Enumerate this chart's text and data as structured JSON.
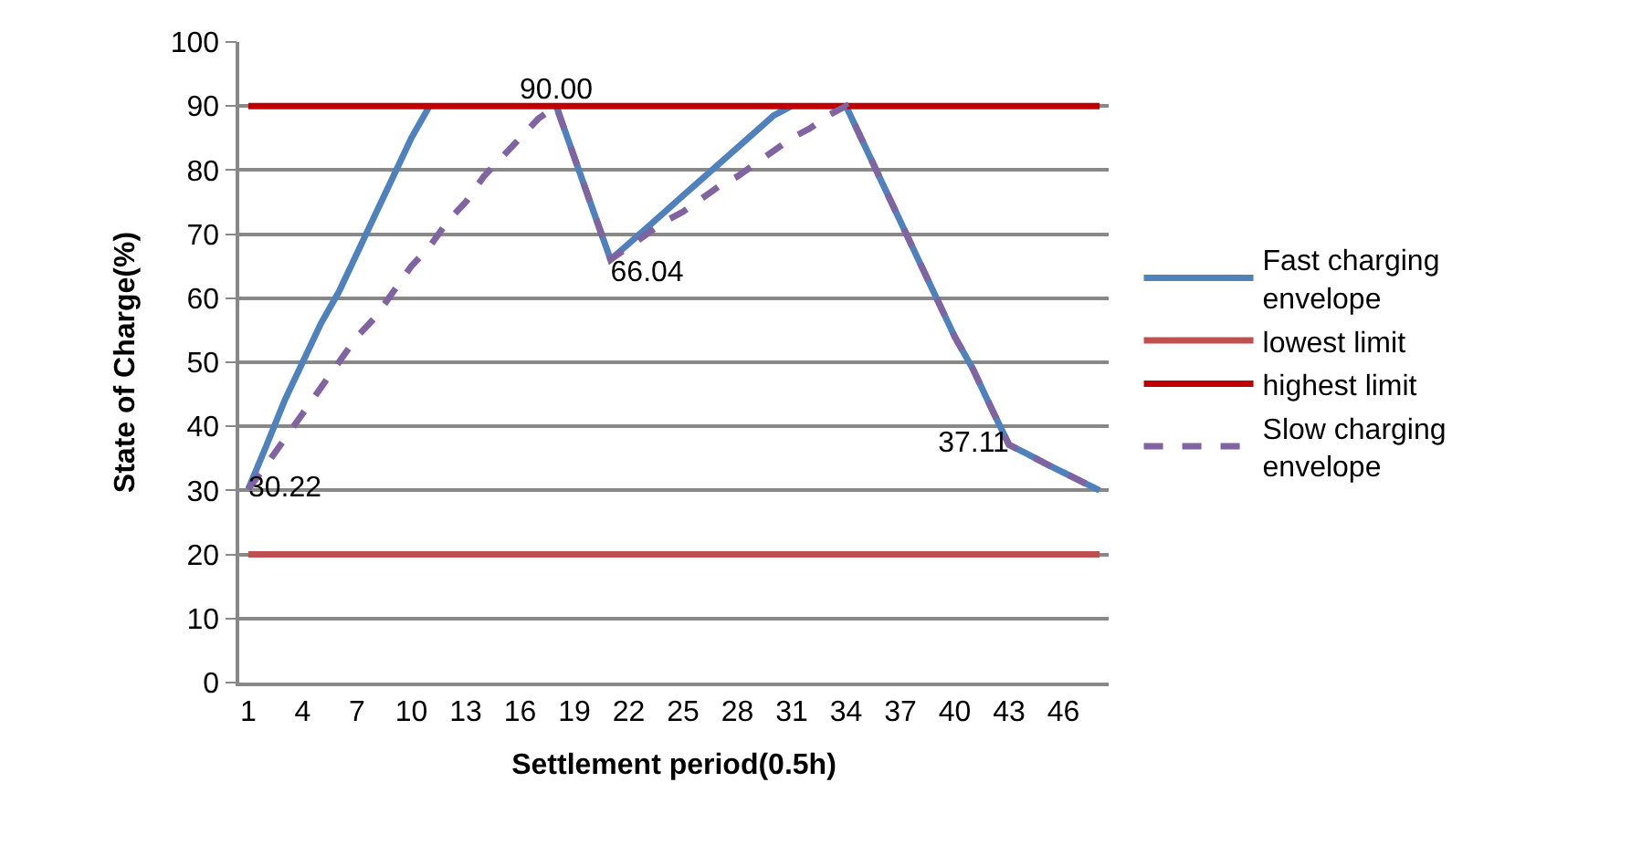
{
  "chart_data": {
    "type": "line",
    "xlabel": "Settlement period(0.5h)",
    "ylabel": "State of Charge(%)",
    "categories": [
      "1",
      null,
      null,
      "4",
      null,
      null,
      "7",
      null,
      null,
      "10",
      null,
      null,
      "13",
      null,
      null,
      "16",
      null,
      null,
      "19",
      null,
      null,
      "22",
      null,
      null,
      "25",
      null,
      null,
      "28",
      null,
      null,
      "31",
      null,
      null,
      "34",
      null,
      null,
      "37",
      null,
      null,
      "40",
      null,
      null,
      "43",
      null,
      null,
      "46",
      null,
      null
    ],
    "series": [
      {
        "name": "Fast charging envelope",
        "color": "#4f81bd",
        "values": [
          30.22,
          37,
          44,
          50,
          56,
          61,
          67,
          73,
          79,
          85,
          90,
          null,
          null,
          null,
          null,
          null,
          null,
          90,
          82,
          74,
          66.04,
          68.5,
          71,
          73.5,
          76,
          78.5,
          81,
          83.5,
          86,
          88.5,
          90,
          null,
          null,
          90,
          84,
          78,
          72,
          66,
          60,
          54,
          49,
          43,
          37.11,
          35.7,
          34.2,
          32.8,
          31.4,
          30
        ]
      },
      {
        "name": "lowest limit",
        "color": "#c0504d",
        "values": [
          20,
          20,
          20,
          20,
          20,
          20,
          20,
          20,
          20,
          20,
          20,
          20,
          20,
          20,
          20,
          20,
          20,
          20,
          20,
          20,
          20,
          20,
          20,
          20,
          20,
          20,
          20,
          20,
          20,
          20,
          20,
          20,
          20,
          20,
          20,
          20,
          20,
          20,
          20,
          20,
          20,
          20,
          20,
          20,
          20,
          20,
          20,
          20
        ]
      },
      {
        "name": "highest limit",
        "color": "#c00000",
        "values": [
          90,
          90,
          90,
          90,
          90,
          90,
          90,
          90,
          90,
          90,
          90,
          90,
          90,
          90,
          90,
          90,
          90,
          90,
          90,
          90,
          90,
          90,
          90,
          90,
          90,
          90,
          90,
          90,
          90,
          90,
          90,
          90,
          90,
          90,
          90,
          90,
          90,
          90,
          90,
          90,
          90,
          90,
          90,
          90,
          90,
          90,
          90,
          90
        ]
      },
      {
        "name": "Slow charging envelope",
        "color": "#8064a2",
        "line_style": "dashed",
        "values": [
          30.22,
          34,
          38,
          42,
          46,
          50,
          54,
          57,
          61,
          65,
          68,
          72,
          75,
          79,
          82,
          85,
          88,
          90,
          82,
          74,
          66.04,
          68,
          70,
          72,
          73.5,
          75.5,
          77.5,
          79,
          81,
          83,
          85,
          86.5,
          88.5,
          90,
          84,
          78,
          72,
          66,
          60,
          54,
          49,
          43,
          37.11,
          35.7,
          34.2,
          32.8,
          31.4,
          30
        ],
        "value_labels": [
          "30.22",
          null,
          null,
          null,
          null,
          null,
          null,
          null,
          null,
          null,
          null,
          null,
          null,
          null,
          null,
          null,
          null,
          "90.00",
          null,
          null,
          "66.04",
          null,
          null,
          null,
          null,
          null,
          null,
          null,
          null,
          null,
          null,
          null,
          null,
          null,
          null,
          null,
          null,
          null,
          null,
          null,
          null,
          null,
          "37.11",
          null,
          null,
          null,
          null,
          null
        ]
      }
    ],
    "ylim": [
      0,
      100
    ],
    "yticks": [
      0,
      10,
      20,
      30,
      40,
      50,
      60,
      70,
      80,
      90,
      100
    ],
    "grid": "y",
    "legend": "right",
    "marker": "none",
    "line_style": "solid"
  }
}
